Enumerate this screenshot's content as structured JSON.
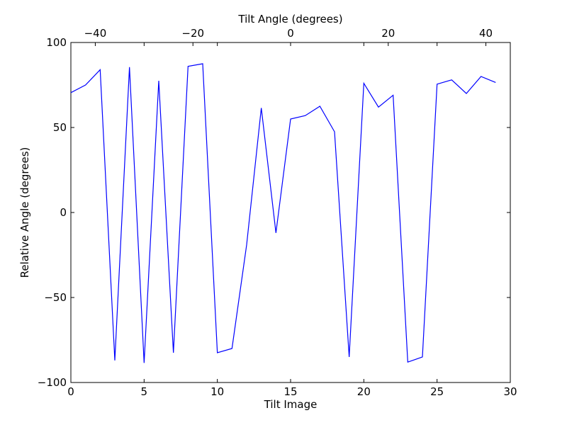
{
  "chart_data": {
    "type": "line",
    "xlabel": "Tilt Image",
    "ylabel": "Relative Angle (degrees)",
    "top_xlabel": "Tilt Angle (degrees)",
    "xlim": [
      0,
      30
    ],
    "ylim": [
      -100,
      100
    ],
    "top_xlim": [
      -45,
      45
    ],
    "xticks": [
      0,
      5,
      10,
      15,
      20,
      25,
      30
    ],
    "yticks": [
      -100,
      -50,
      0,
      50,
      100
    ],
    "top_xticks": [
      -40,
      -20,
      0,
      20,
      40
    ],
    "x_tick_labels": [
      "0",
      "5",
      "10",
      "15",
      "20",
      "25",
      "30"
    ],
    "y_tick_labels": [
      "−100",
      "−50",
      "0",
      "50",
      "100"
    ],
    "top_x_tick_labels": [
      "−40",
      "−20",
      "0",
      "20",
      "40"
    ],
    "grid": false,
    "series": [
      {
        "color": "#0000ff",
        "x": [
          0,
          1,
          2,
          3,
          4,
          5,
          6,
          7,
          8,
          9,
          10,
          11,
          12,
          13,
          14,
          15,
          16,
          17,
          18,
          19,
          20,
          21,
          22,
          23,
          24,
          25,
          26,
          27,
          28,
          29
        ],
        "y": [
          70.5,
          75,
          84,
          -87,
          85.5,
          -88.5,
          77.5,
          -82.5,
          86,
          87.5,
          -82.5,
          -80,
          -19,
          61.5,
          -12,
          55,
          57,
          62.5,
          47.5,
          -85,
          76,
          62,
          69,
          -88,
          -85,
          75.5,
          78,
          70,
          80,
          76.5
        ]
      }
    ]
  }
}
